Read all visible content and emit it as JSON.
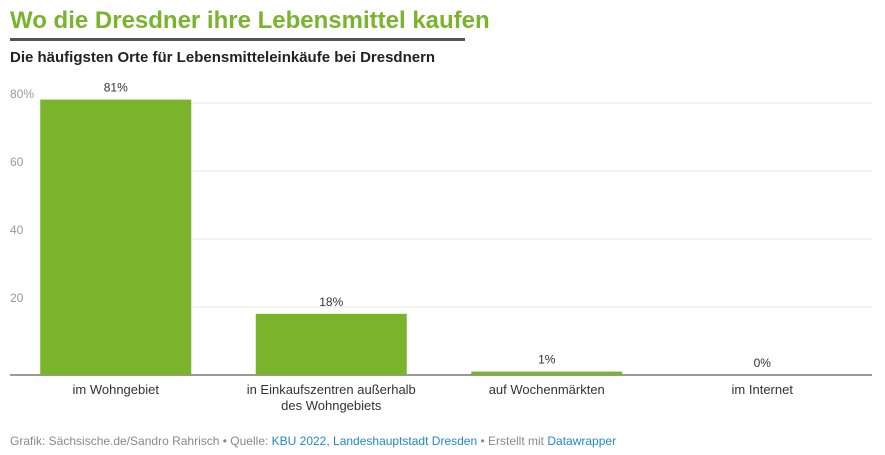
{
  "header": {
    "title": "Wo die Dresdner ihre Lebensmittel kaufen",
    "subtitle": "Die häufigsten Orte für Lebensmitteleinkäufe bei Dresdnern"
  },
  "colors": {
    "bar": "#7ab42d",
    "title": "#7ab42d",
    "link": "#1f8ac9"
  },
  "chart_data": {
    "type": "bar",
    "categories": [
      [
        "im Wohngebiet"
      ],
      [
        "in Einkaufszentren außerhalb",
        "des Wohngebiets"
      ],
      [
        "auf Wochenmärkten"
      ],
      [
        "im Internet"
      ]
    ],
    "values": [
      81,
      18,
      1,
      0
    ],
    "value_labels": [
      "81%",
      "18%",
      "1%",
      "0%"
    ],
    "ylim": [
      0,
      80
    ],
    "yticks": [
      {
        "value": 20,
        "label": "20"
      },
      {
        "value": 40,
        "label": "40"
      },
      {
        "value": 60,
        "label": "60"
      },
      {
        "value": 80,
        "label": "80%"
      }
    ],
    "grid": true
  },
  "footer": {
    "prefix": "Grafik: Sächsische.de/Sandro Rahrisch • Quelle: ",
    "source_links": "KBU 2022, Landeshauptstadt Dresden",
    "middle": " • Erstellt mit ",
    "tool_link": "Datawrapper"
  }
}
